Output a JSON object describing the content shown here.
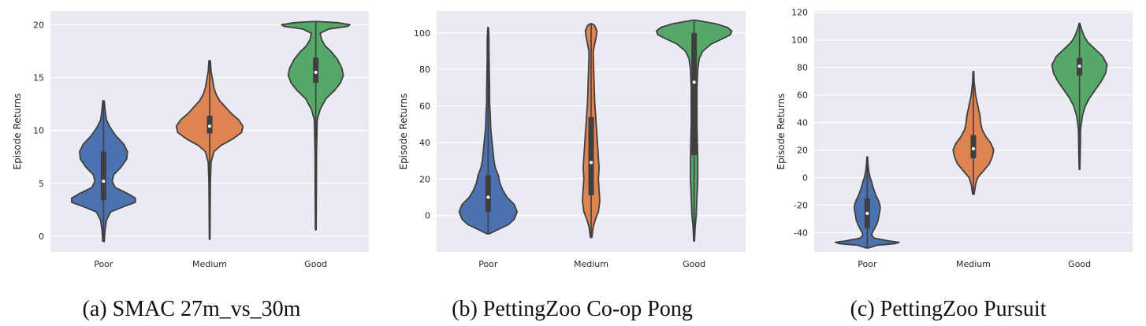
{
  "chart_data": [
    {
      "type": "violin",
      "caption": "(a) SMAC 27m_vs_30m",
      "ylabel": "Episode Returns",
      "ylim": [
        -1.5,
        21.3
      ],
      "yticks": [
        0,
        5,
        10,
        15,
        20
      ],
      "categories": [
        "Poor",
        "Medium",
        "Good"
      ],
      "grid": true,
      "series": [
        {
          "category": "Poor",
          "color": "#4c72b0",
          "min": -0.5,
          "max": 12.8,
          "q1": 3.4,
          "median": 5.2,
          "q3": 8.0,
          "profile": [
            [
              -0.5,
              0.01
            ],
            [
              0.5,
              0.02
            ],
            [
              1.5,
              0.04
            ],
            [
              2.3,
              0.1
            ],
            [
              2.8,
              0.28
            ],
            [
              3.2,
              0.44
            ],
            [
              3.6,
              0.44
            ],
            [
              4.0,
              0.34
            ],
            [
              4.6,
              0.16
            ],
            [
              5.2,
              0.12
            ],
            [
              5.8,
              0.14
            ],
            [
              6.5,
              0.24
            ],
            [
              7.3,
              0.32
            ],
            [
              8.0,
              0.33
            ],
            [
              8.7,
              0.28
            ],
            [
              9.5,
              0.17
            ],
            [
              10.3,
              0.09
            ],
            [
              11.0,
              0.04
            ],
            [
              12.0,
              0.02
            ],
            [
              12.8,
              0.01
            ]
          ]
        },
        {
          "category": "Medium",
          "color": "#dd8452",
          "min": -0.3,
          "max": 16.6,
          "q1": 9.7,
          "median": 10.4,
          "q3": 11.4,
          "profile": [
            [
              -0.3,
              0.004
            ],
            [
              2,
              0.006
            ],
            [
              5,
              0.01
            ],
            [
              7,
              0.02
            ],
            [
              8,
              0.06
            ],
            [
              8.6,
              0.16
            ],
            [
              9.2,
              0.32
            ],
            [
              9.8,
              0.44
            ],
            [
              10.4,
              0.46
            ],
            [
              11.0,
              0.4
            ],
            [
              11.6,
              0.3
            ],
            [
              12.2,
              0.22
            ],
            [
              12.8,
              0.14
            ],
            [
              13.4,
              0.09
            ],
            [
              14.0,
              0.06
            ],
            [
              14.8,
              0.04
            ],
            [
              15.6,
              0.02
            ],
            [
              16.6,
              0.01
            ]
          ]
        },
        {
          "category": "Good",
          "color": "#55a868",
          "min": 0.6,
          "max": 20.3,
          "q1": 14.5,
          "median": 15.5,
          "q3": 16.9,
          "profile": [
            [
              0.6,
              0.005
            ],
            [
              4,
              0.008
            ],
            [
              8,
              0.01
            ],
            [
              11,
              0.02
            ],
            [
              12,
              0.06
            ],
            [
              13,
              0.14
            ],
            [
              13.8,
              0.26
            ],
            [
              14.5,
              0.34
            ],
            [
              15.2,
              0.38
            ],
            [
              15.9,
              0.36
            ],
            [
              16.7,
              0.3
            ],
            [
              17.4,
              0.22
            ],
            [
              18.0,
              0.13
            ],
            [
              18.6,
              0.08
            ],
            [
              19.2,
              0.06
            ],
            [
              19.6,
              0.18
            ],
            [
              19.85,
              0.44
            ],
            [
              20.0,
              0.47
            ],
            [
              20.2,
              0.3
            ],
            [
              20.3,
              0.04
            ]
          ]
        }
      ]
    },
    {
      "type": "violin",
      "caption": "(b) PettingZoo Co-op Pong",
      "ylabel": "Episode Returns",
      "ylim": [
        -20,
        112
      ],
      "yticks": [
        0,
        20,
        40,
        60,
        80,
        100
      ],
      "categories": [
        "Poor",
        "Medium",
        "Good"
      ],
      "grid": true,
      "series": [
        {
          "category": "Poor",
          "color": "#4c72b0",
          "min": -10,
          "max": 103,
          "q1": 2,
          "median": 10,
          "q3": 22,
          "profile": [
            [
              -10,
              0.02
            ],
            [
              -8,
              0.12
            ],
            [
              -5,
              0.28
            ],
            [
              -2,
              0.36
            ],
            [
              2,
              0.4
            ],
            [
              6,
              0.36
            ],
            [
              10,
              0.26
            ],
            [
              14,
              0.2
            ],
            [
              18,
              0.16
            ],
            [
              22,
              0.14
            ],
            [
              26,
              0.1
            ],
            [
              30,
              0.08
            ],
            [
              34,
              0.07
            ],
            [
              38,
              0.06
            ],
            [
              42,
              0.05
            ],
            [
              48,
              0.035
            ],
            [
              55,
              0.03
            ],
            [
              62,
              0.02
            ],
            [
              70,
              0.02
            ],
            [
              80,
              0.015
            ],
            [
              90,
              0.012
            ],
            [
              96,
              0.012
            ],
            [
              100,
              0.008
            ],
            [
              103,
              0.004
            ]
          ]
        },
        {
          "category": "Medium",
          "color": "#dd8452",
          "min": -12,
          "max": 105,
          "q1": 11,
          "median": 29,
          "q3": 54,
          "profile": [
            [
              -12,
              0.01
            ],
            [
              -6,
              0.03
            ],
            [
              -2,
              0.06
            ],
            [
              2,
              0.1
            ],
            [
              8,
              0.12
            ],
            [
              14,
              0.11
            ],
            [
              20,
              0.1
            ],
            [
              26,
              0.11
            ],
            [
              32,
              0.1
            ],
            [
              38,
              0.09
            ],
            [
              44,
              0.08
            ],
            [
              50,
              0.07
            ],
            [
              56,
              0.06
            ],
            [
              62,
              0.05
            ],
            [
              68,
              0.045
            ],
            [
              74,
              0.04
            ],
            [
              80,
              0.035
            ],
            [
              86,
              0.03
            ],
            [
              90,
              0.03
            ],
            [
              94,
              0.05
            ],
            [
              98,
              0.07
            ],
            [
              101,
              0.08
            ],
            [
              104,
              0.05
            ],
            [
              105,
              0.01
            ]
          ]
        },
        {
          "category": "Good",
          "color": "#55a868",
          "min": -14,
          "max": 107,
          "q1": 33,
          "median": 73,
          "q3": 100,
          "profile": [
            [
              -14,
              0.005
            ],
            [
              -6,
              0.015
            ],
            [
              0,
              0.03
            ],
            [
              10,
              0.04
            ],
            [
              20,
              0.05
            ],
            [
              30,
              0.05
            ],
            [
              40,
              0.045
            ],
            [
              50,
              0.04
            ],
            [
              60,
              0.04
            ],
            [
              70,
              0.04
            ],
            [
              80,
              0.05
            ],
            [
              86,
              0.07
            ],
            [
              90,
              0.12
            ],
            [
              94,
              0.24
            ],
            [
              97,
              0.4
            ],
            [
              99,
              0.5
            ],
            [
              101,
              0.52
            ],
            [
              103,
              0.46
            ],
            [
              105,
              0.3
            ],
            [
              107,
              0.02
            ]
          ]
        }
      ]
    },
    {
      "type": "violin",
      "caption": "(c) PettingZoo Pursuit",
      "ylabel": "Episode Returns",
      "ylim": [
        -54,
        121
      ],
      "yticks": [
        -40,
        -20,
        0,
        20,
        40,
        60,
        80,
        100,
        120
      ],
      "categories": [
        "Poor",
        "Medium",
        "Good"
      ],
      "grid": true,
      "series": [
        {
          "category": "Poor",
          "color": "#4c72b0",
          "min": -51,
          "max": 15,
          "q1": -37,
          "median": -26,
          "q3": -15,
          "profile": [
            [
              -51,
              0.02
            ],
            [
              -49,
              0.14
            ],
            [
              -48,
              0.38
            ],
            [
              -47,
              0.44
            ],
            [
              -46,
              0.3
            ],
            [
              -44,
              0.1
            ],
            [
              -42,
              0.06
            ],
            [
              -40,
              0.07
            ],
            [
              -37,
              0.1
            ],
            [
              -34,
              0.13
            ],
            [
              -31,
              0.15
            ],
            [
              -28,
              0.16
            ],
            [
              -25,
              0.17
            ],
            [
              -22,
              0.18
            ],
            [
              -19,
              0.17
            ],
            [
              -16,
              0.15
            ],
            [
              -13,
              0.12
            ],
            [
              -10,
              0.1
            ],
            [
              -7,
              0.08
            ],
            [
              -3,
              0.06
            ],
            [
              0,
              0.04
            ],
            [
              5,
              0.02
            ],
            [
              10,
              0.01
            ],
            [
              15,
              0.005
            ]
          ]
        },
        {
          "category": "Medium",
          "color": "#dd8452",
          "min": -12,
          "max": 77,
          "q1": 14,
          "median": 21,
          "q3": 31,
          "profile": [
            [
              -12,
              0.01
            ],
            [
              -5,
              0.03
            ],
            [
              0,
              0.06
            ],
            [
              5,
              0.14
            ],
            [
              10,
              0.22
            ],
            [
              15,
              0.26
            ],
            [
              20,
              0.28
            ],
            [
              25,
              0.24
            ],
            [
              30,
              0.17
            ],
            [
              35,
              0.12
            ],
            [
              40,
              0.1
            ],
            [
              45,
              0.09
            ],
            [
              50,
              0.07
            ],
            [
              55,
              0.05
            ],
            [
              60,
              0.03
            ],
            [
              65,
              0.02
            ],
            [
              70,
              0.01
            ],
            [
              77,
              0.005
            ]
          ]
        },
        {
          "category": "Good",
          "color": "#55a868",
          "min": 6,
          "max": 112,
          "q1": 74,
          "median": 81,
          "q3": 87,
          "profile": [
            [
              6,
              0.005
            ],
            [
              20,
              0.01
            ],
            [
              35,
              0.015
            ],
            [
              45,
              0.04
            ],
            [
              52,
              0.08
            ],
            [
              58,
              0.14
            ],
            [
              64,
              0.22
            ],
            [
              70,
              0.3
            ],
            [
              76,
              0.36
            ],
            [
              82,
              0.38
            ],
            [
              88,
              0.32
            ],
            [
              94,
              0.2
            ],
            [
              98,
              0.12
            ],
            [
              102,
              0.07
            ],
            [
              106,
              0.04
            ],
            [
              109,
              0.02
            ],
            [
              112,
              0.005
            ]
          ]
        }
      ]
    }
  ]
}
